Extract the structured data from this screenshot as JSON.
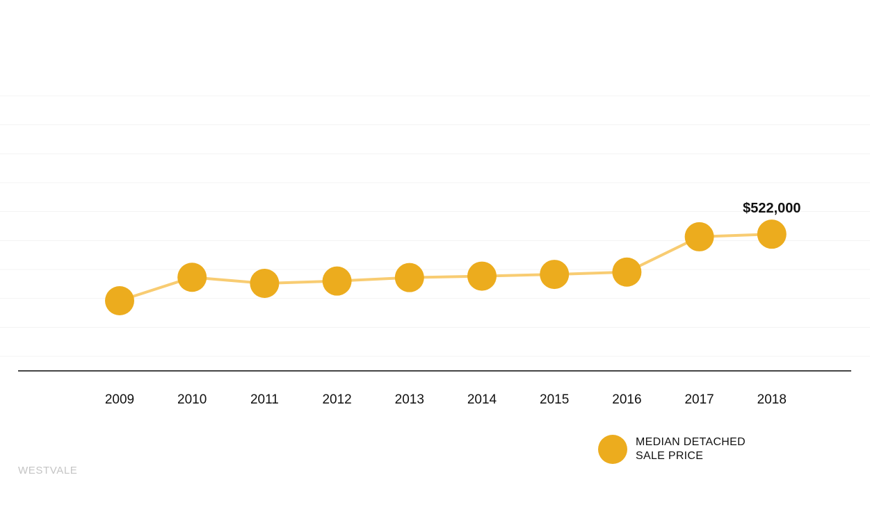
{
  "colors": {
    "marker": "#ecac1e",
    "line": "#f8cc72",
    "axis": "#444444",
    "grid": "#f3f3f3",
    "source_text": "#c4c4c4"
  },
  "legend": {
    "label": "MEDIAN DETACHED SALE PRICE"
  },
  "source": {
    "label": "WESTVALE"
  },
  "chart_data": {
    "type": "line",
    "x": [
      "2009",
      "2010",
      "2011",
      "2012",
      "2013",
      "2014",
      "2015",
      "2016",
      "2017",
      "2018"
    ],
    "series": [
      {
        "name": "MEDIAN DETACHED SALE PRICE",
        "values": [
          292000,
          373000,
          352000,
          360000,
          372000,
          377000,
          383000,
          391000,
          513000,
          522000
        ]
      }
    ],
    "annotations": [
      {
        "x": "2018",
        "label": "$522,000"
      }
    ],
    "ylim": [
      100000,
      1000000
    ],
    "grid": true,
    "y_tick_labels_visible": false,
    "legend_position": "bottom-right",
    "title": "",
    "xlabel": "",
    "ylabel": ""
  }
}
